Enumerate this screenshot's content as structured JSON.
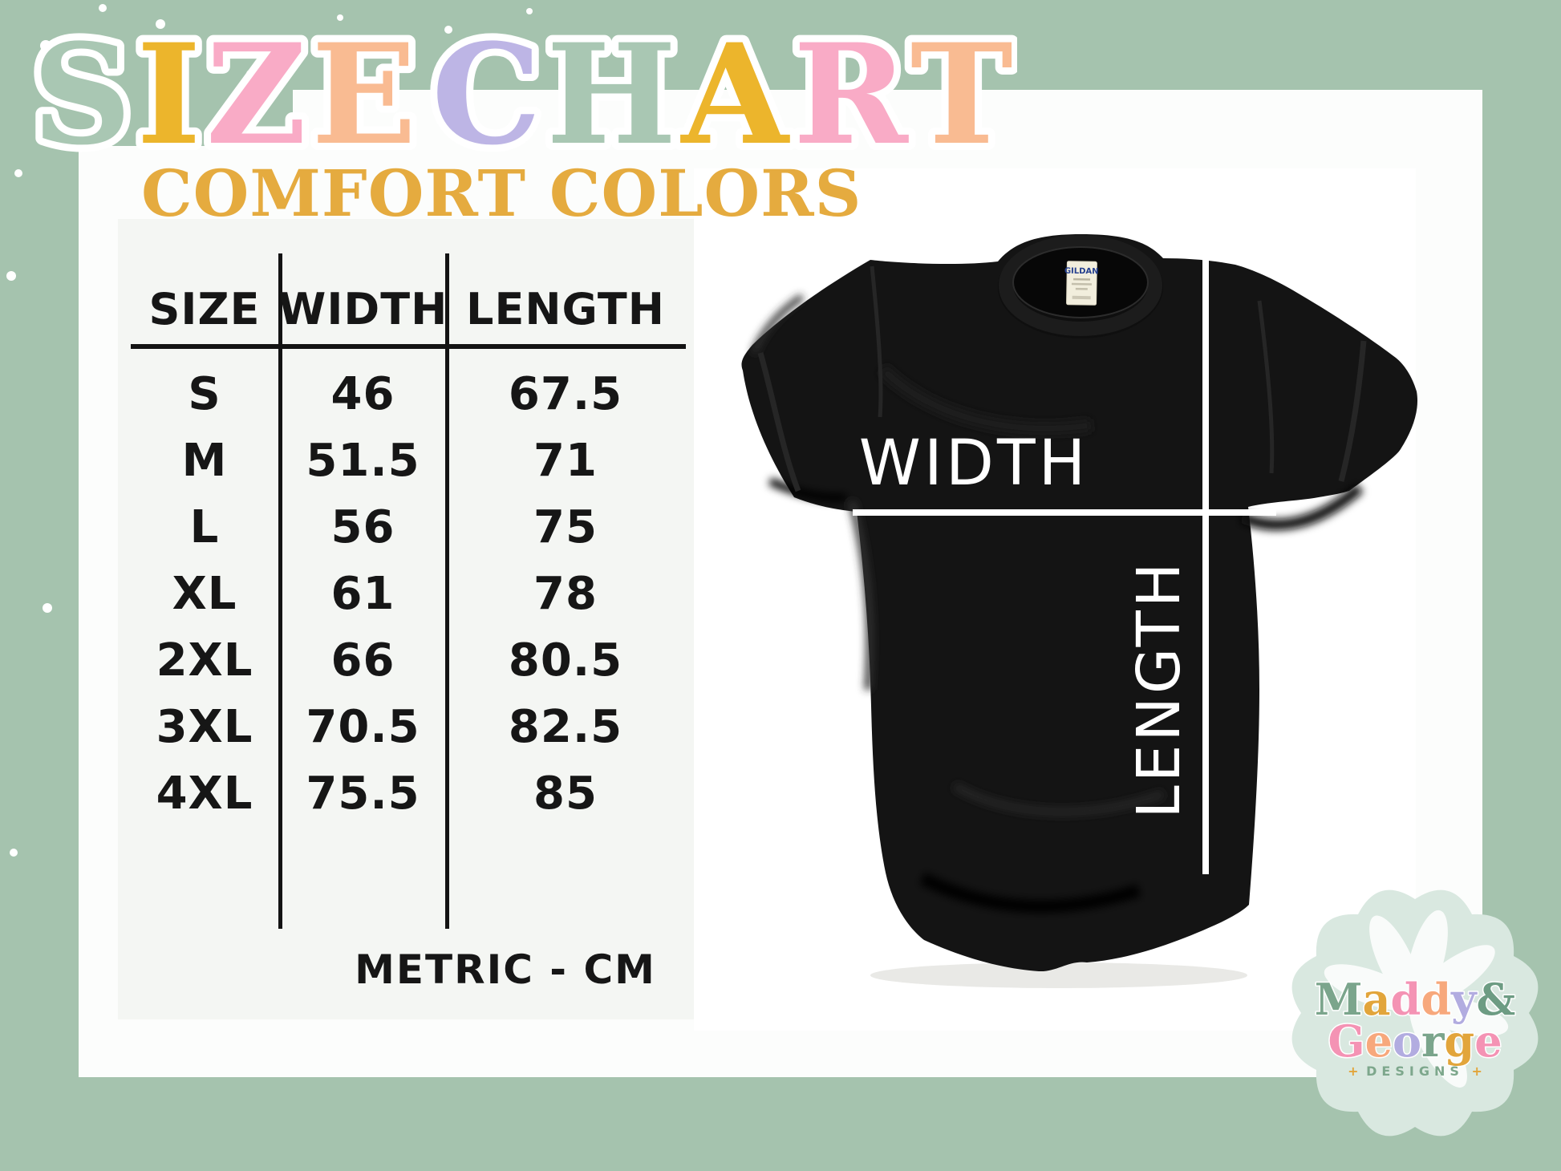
{
  "page": {
    "background_color": "#a5c3ae",
    "card_color": "#fcfdfc"
  },
  "title": {
    "text": "SIZE CHART",
    "word1": [
      {
        "ch": "S",
        "c": "#a9c7b3"
      },
      {
        "ch": "I",
        "c": "#ecb52c"
      },
      {
        "ch": "Z",
        "c": "#f9abc6"
      },
      {
        "ch": "E",
        "c": "#f9bb92"
      }
    ],
    "word2": [
      {
        "ch": "C",
        "c": "#bdb5e5"
      },
      {
        "ch": "H",
        "c": "#a9c7b3"
      },
      {
        "ch": "A",
        "c": "#ecb52c"
      },
      {
        "ch": "R",
        "c": "#f9abc6"
      },
      {
        "ch": "T",
        "c": "#f9bb92"
      }
    ]
  },
  "subtitle": {
    "text": "COMFORT COLORS",
    "color": "#e5ab3f"
  },
  "chart_data": {
    "type": "table",
    "title": "SIZE CHART",
    "subtitle": "COMFORT COLORS",
    "unit": "METRIC - CM",
    "columns": [
      "SIZE",
      "WIDTH",
      "LENGTH"
    ],
    "rows": [
      [
        "S",
        46,
        67.5
      ],
      [
        "M",
        51.5,
        71
      ],
      [
        "L",
        56,
        75
      ],
      [
        "XL",
        61,
        78
      ],
      [
        "2XL",
        66,
        80.5
      ],
      [
        "3XL",
        70.5,
        82.5
      ],
      [
        "4XL",
        75.5,
        85
      ]
    ]
  },
  "shirt": {
    "width_label": "WIDTH",
    "length_label": "LENGTH",
    "tag_brand": "GILDAN",
    "shirt_color": "#141414",
    "line_color": "#ffffff"
  },
  "logo": {
    "badge_color": "#d9e8e0",
    "line1": [
      {
        "ch": "M",
        "c": "#7ba58c"
      },
      {
        "ch": "a",
        "c": "#e2a53b"
      },
      {
        "ch": "d",
        "c": "#f493b4"
      },
      {
        "ch": "d",
        "c": "#f7a87c"
      },
      {
        "ch": "y",
        "c": "#b2ace0"
      },
      {
        "ch": "&",
        "c": "#6d9c83"
      }
    ],
    "line2": [
      {
        "ch": "G",
        "c": "#f493b4"
      },
      {
        "ch": "e",
        "c": "#f7a87c"
      },
      {
        "ch": "o",
        "c": "#b2ace0"
      },
      {
        "ch": "r",
        "c": "#7ba58c"
      },
      {
        "ch": "g",
        "c": "#e2a53b"
      },
      {
        "ch": "e",
        "c": "#f493b4"
      }
    ],
    "designs": "DESIGNS",
    "star": "+"
  }
}
